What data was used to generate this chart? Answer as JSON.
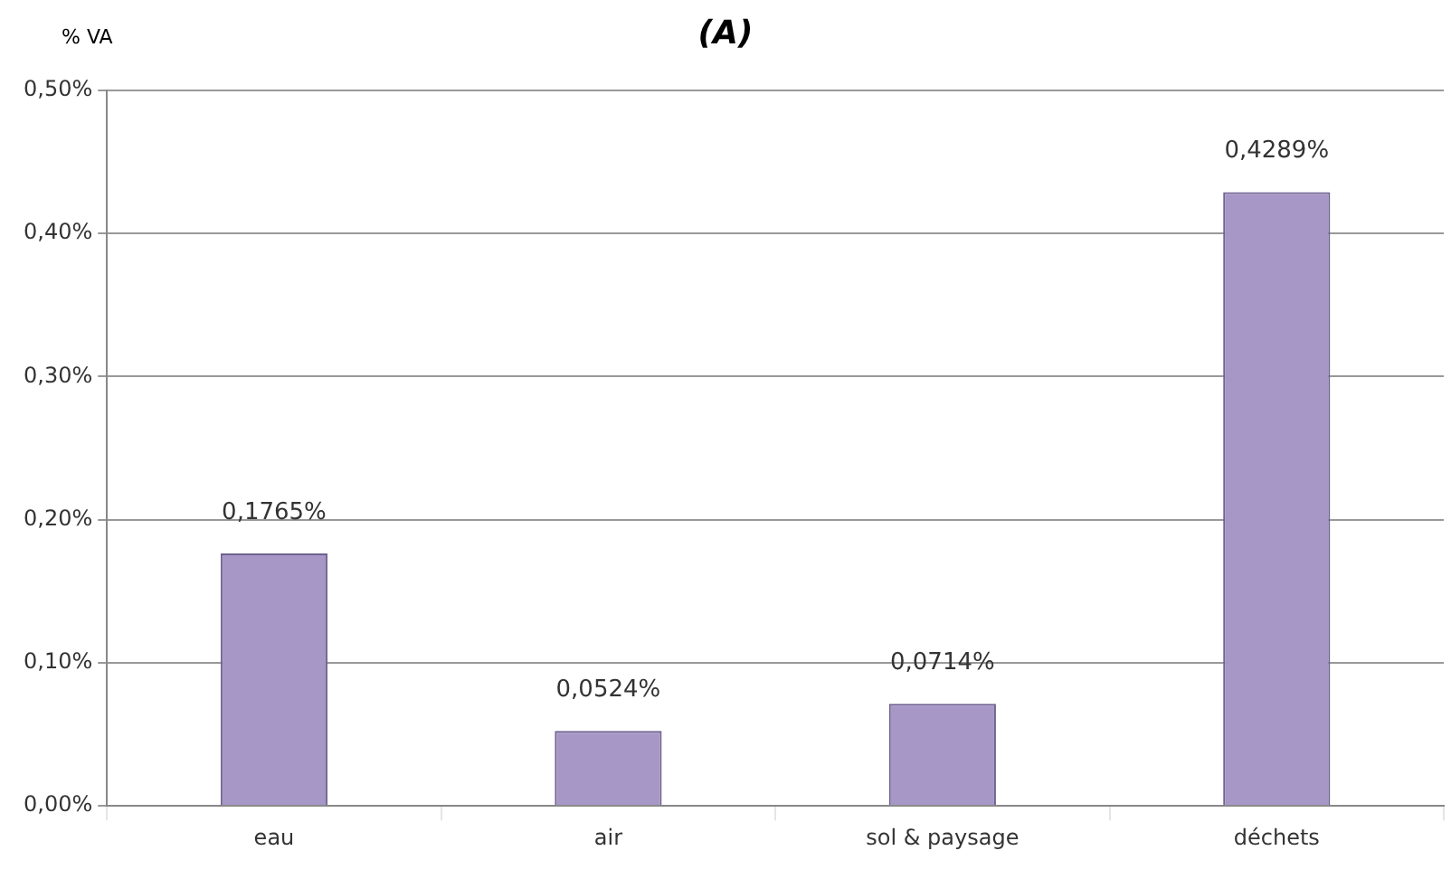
{
  "chart_data": {
    "type": "bar",
    "title": "(A)",
    "ylabel": "% VA",
    "categories": [
      "eau",
      "air",
      "sol & paysage",
      "déchets"
    ],
    "values": [
      0.1765,
      0.0524,
      0.0714,
      0.4289
    ],
    "value_labels": [
      "0,1765%",
      "0,0524%",
      "0,0714%",
      "0,4289%"
    ],
    "color": "#a797c6",
    "ylim": [
      0,
      0.5
    ],
    "yticks": [
      {
        "value": 0,
        "label": "0,00%"
      },
      {
        "value": 0.1,
        "label": "0,10%"
      },
      {
        "value": 0.2,
        "label": "0,20%"
      },
      {
        "value": 0.3,
        "label": "0,30%"
      },
      {
        "value": 0.4,
        "label": "0,40%"
      },
      {
        "value": 0.5,
        "label": "0,50%"
      }
    ],
    "grid": true
  }
}
